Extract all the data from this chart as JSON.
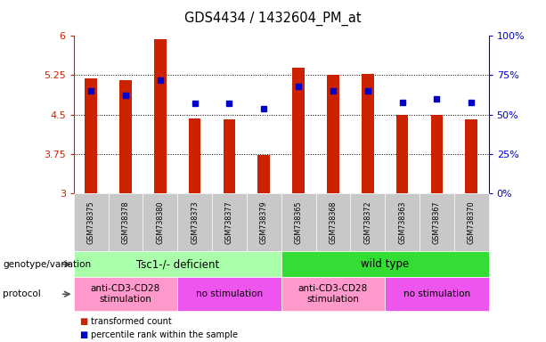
{
  "title": "GDS4434 / 1432604_PM_at",
  "samples": [
    "GSM738375",
    "GSM738378",
    "GSM738380",
    "GSM738373",
    "GSM738377",
    "GSM738379",
    "GSM738365",
    "GSM738368",
    "GSM738372",
    "GSM738363",
    "GSM738367",
    "GSM738370"
  ],
  "bar_values": [
    5.19,
    5.15,
    5.93,
    4.43,
    4.41,
    3.73,
    5.39,
    5.25,
    5.28,
    4.5,
    4.5,
    4.41
  ],
  "dot_values": [
    65,
    62,
    72,
    57,
    57,
    54,
    68,
    65,
    65,
    58,
    60,
    58
  ],
  "bar_color": "#CC2200",
  "dot_color": "#0000CC",
  "ylim_left": [
    3,
    6
  ],
  "ylim_right": [
    0,
    100
  ],
  "yticks_left": [
    3,
    3.75,
    4.5,
    5.25,
    6
  ],
  "yticks_right": [
    0,
    25,
    50,
    75,
    100
  ],
  "ytick_labels_left": [
    "3",
    "3.75",
    "4.5",
    "5.25",
    "6"
  ],
  "ytick_labels_right": [
    "0%",
    "25%",
    "50%",
    "75%",
    "100%"
  ],
  "genotype_groups": [
    {
      "label": "Tsc1-/- deficient",
      "start": 0,
      "end": 6,
      "color": "#AAFFAA"
    },
    {
      "label": "wild type",
      "start": 6,
      "end": 12,
      "color": "#33DD33"
    }
  ],
  "protocol_groups": [
    {
      "label": "anti-CD3-CD28\nstimulation",
      "start": 0,
      "end": 3,
      "color": "#FF99CC"
    },
    {
      "label": "no stimulation",
      "start": 3,
      "end": 6,
      "color": "#EE55EE"
    },
    {
      "label": "anti-CD3-CD28\nstimulation",
      "start": 6,
      "end": 9,
      "color": "#FF99CC"
    },
    {
      "label": "no stimulation",
      "start": 9,
      "end": 12,
      "color": "#EE55EE"
    }
  ],
  "left_axis_color": "#CC2200",
  "right_axis_color": "#0000CC",
  "tick_bg_color": "#C8C8C8",
  "bar_width": 0.35,
  "label_genotype": "genotype/variation",
  "label_protocol": "protocol",
  "legend_bar_label": "transformed count",
  "legend_dot_label": "percentile rank within the sample"
}
